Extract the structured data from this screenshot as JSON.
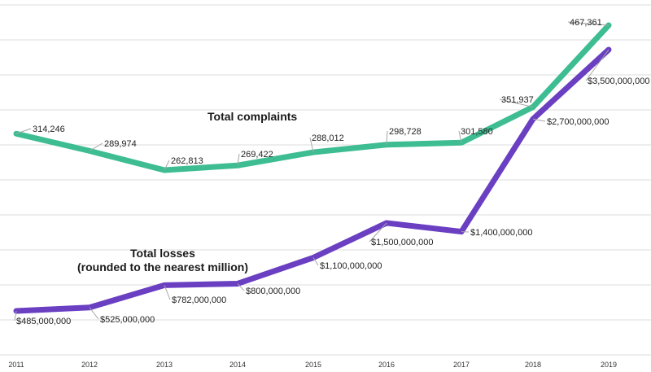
{
  "chart_data": {
    "type": "line",
    "x": [
      "2011",
      "2012",
      "2013",
      "2014",
      "2015",
      "2016",
      "2017",
      "2018",
      "2019"
    ],
    "series": [
      {
        "name": "Total complaints",
        "color": "#3dbd91",
        "values": [
          314246,
          289974,
          262813,
          269422,
          288012,
          298728,
          301580,
          351937,
          467361
        ],
        "labels": [
          "314,246",
          "289,974",
          "262,813",
          "269,422",
          "288,012",
          "298,728",
          "301,580",
          "351,937",
          "467,361"
        ]
      },
      {
        "name": "Total losses",
        "color": "#6a3fc2",
        "values": [
          485000000,
          525000000,
          782000000,
          800000000,
          1100000000,
          1500000000,
          1400000000,
          2700000000,
          3500000000
        ],
        "labels": [
          "$485,000,000",
          "$525,000,000",
          "$782,000,000",
          "$800,000,000",
          "$1,100,000,000",
          "$1,500,000,000",
          "$1,400,000,000",
          "$2,700,000,000",
          "$3,500,000,000"
        ]
      }
    ],
    "annotations": [
      "Total complaints",
      "Total losses",
      "(rounded to the nearest million)"
    ],
    "grid": true,
    "legend": "none",
    "title": "",
    "xlabel": "",
    "ylabel": ""
  }
}
